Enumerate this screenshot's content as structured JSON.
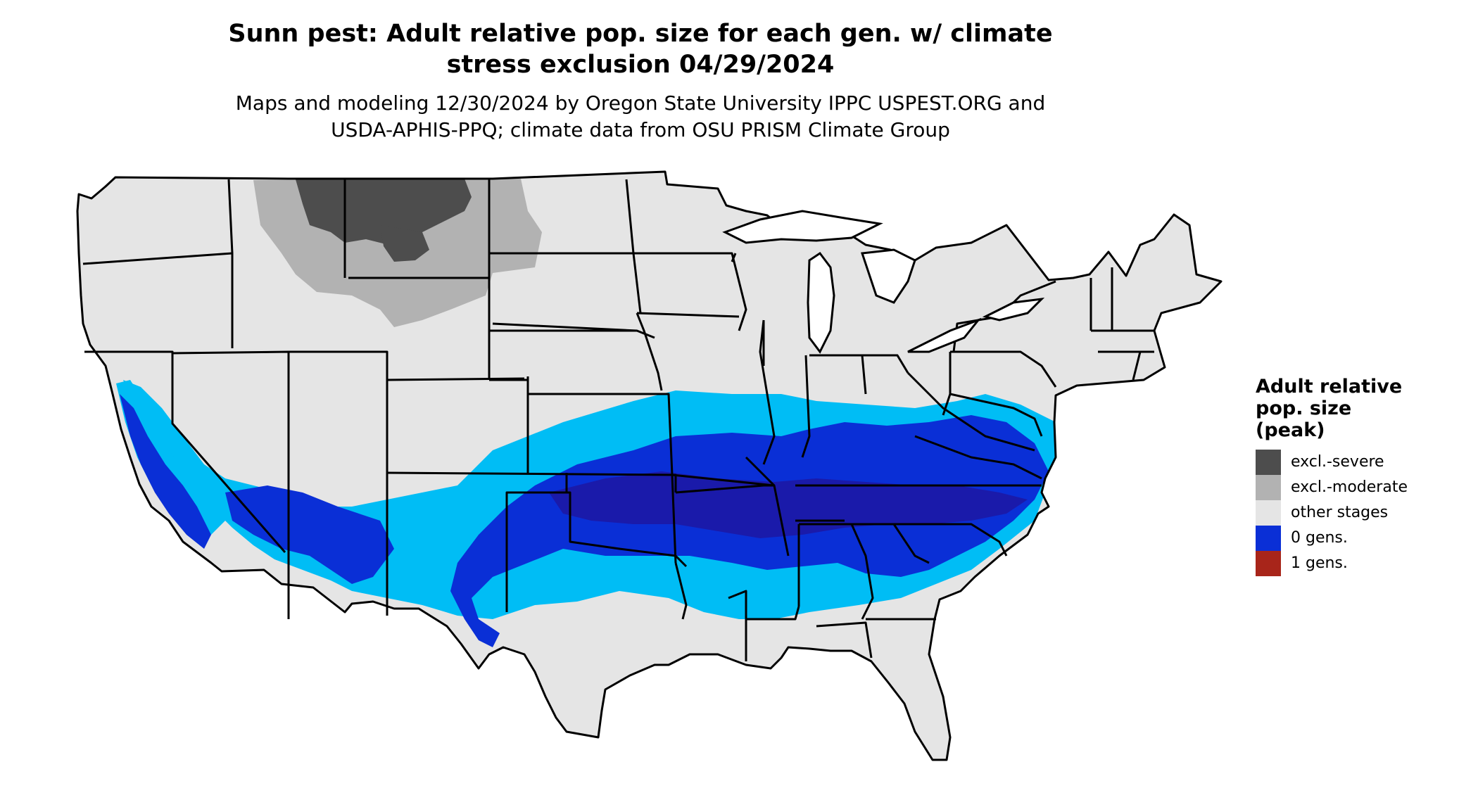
{
  "header": {
    "title_line1": "Sunn pest: Adult relative pop. size for each gen. w/ climate",
    "title_line2": "stress exclusion 04/29/2024",
    "subtitle_line1": "Maps and modeling 12/30/2024 by Oregon State University IPPC USPEST.ORG and",
    "subtitle_line2": "USDA-APHIS-PPQ; climate data from OSU PRISM Climate Group"
  },
  "legend": {
    "title_line1": "Adult relative",
    "title_line2": "pop. size",
    "title_line3": "(peak)",
    "items": [
      {
        "label": "excl.-severe",
        "color": "#4d4d4d"
      },
      {
        "label": "excl.-moderate",
        "color": "#b2b2b2"
      },
      {
        "label": "other stages",
        "color": "#e5e5e5"
      },
      {
        "label": "0 gens.",
        "color": "#0a2fd6"
      },
      {
        "label": "1 gens.",
        "color": "#a8251a"
      }
    ]
  },
  "colors": {
    "land": "#e5e5e5",
    "border": "#000000",
    "low_blue": "#00bdf5",
    "mid_blue": "#0a2fd6",
    "dark_blue": "#1a1aaa",
    "excl_severe": "#4d4d4d",
    "excl_moderate": "#b2b2b2"
  }
}
